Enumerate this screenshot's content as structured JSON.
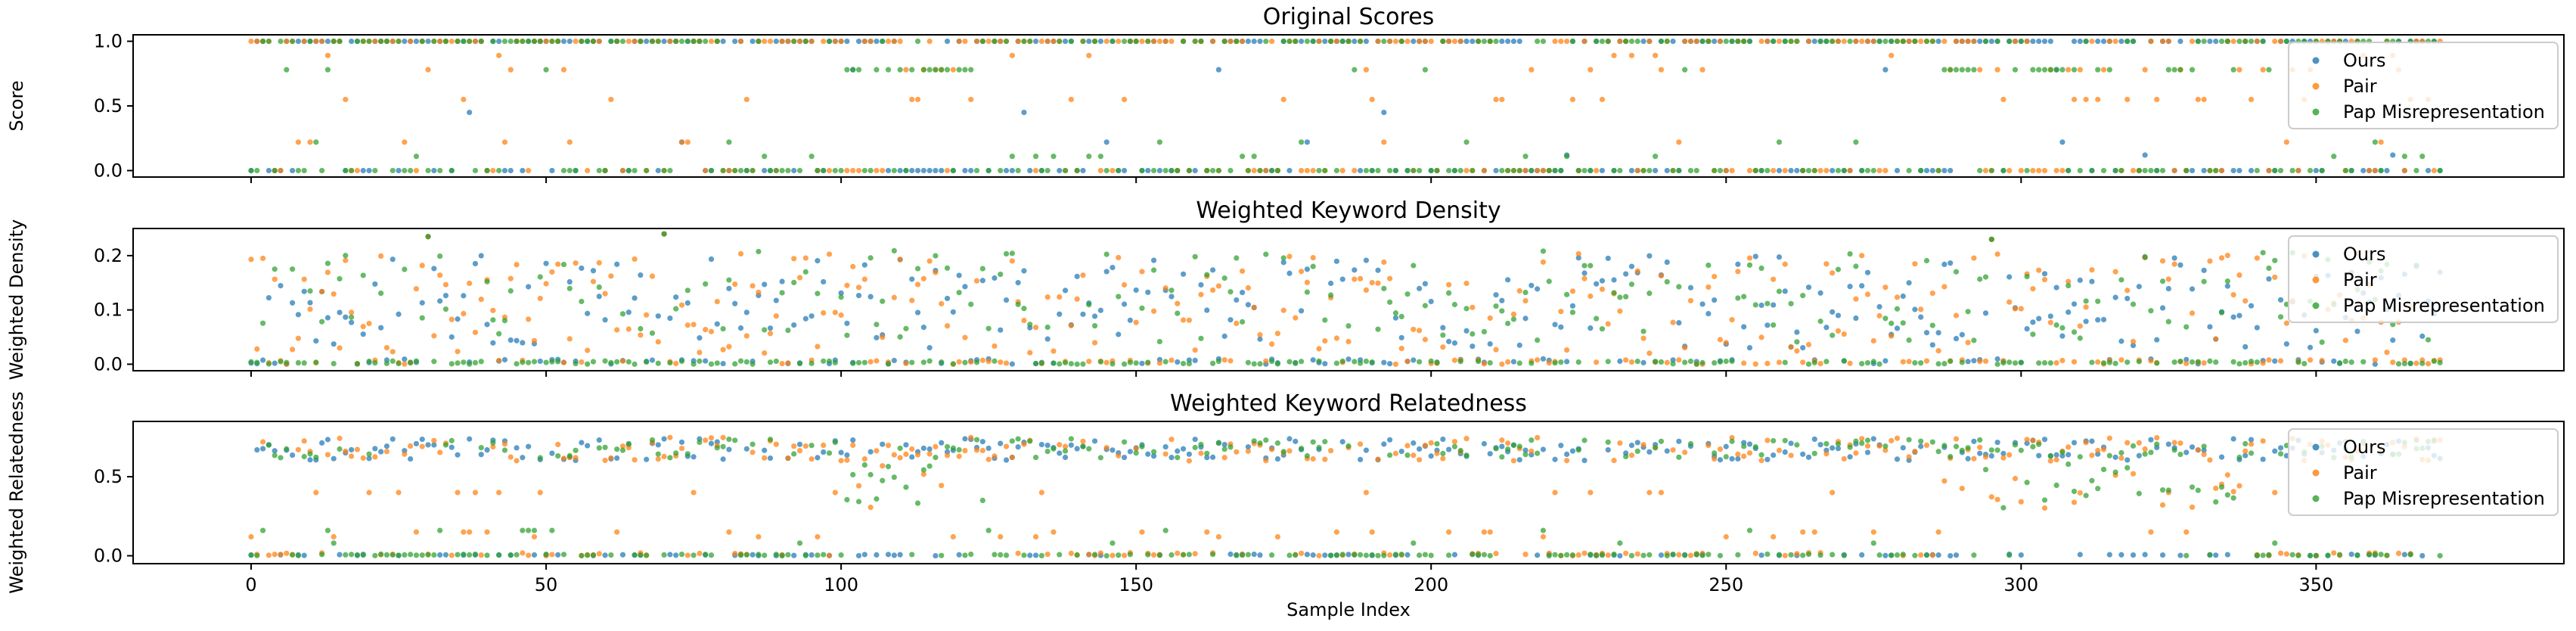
{
  "chart_data": [
    {
      "type": "scatter",
      "title": "Original Scores",
      "ylabel": "Score",
      "xlabel": "",
      "xlim": [
        -20,
        392
      ],
      "ylim": [
        -0.05,
        1.05
      ],
      "xticks": [
        0,
        50,
        100,
        150,
        200,
        250,
        300,
        350
      ],
      "yticks": [
        0.0,
        0.5,
        1.0
      ],
      "ytick_labels": [
        "0.0",
        "0.5",
        "1.0"
      ],
      "show_xtick_labels": false,
      "legend": "right",
      "pattern": "binary"
    },
    {
      "type": "scatter",
      "title": "Weighted Keyword Density",
      "ylabel": "Weighted Density",
      "xlabel": "",
      "xlim": [
        -20,
        392
      ],
      "ylim": [
        -0.012,
        0.25
      ],
      "xticks": [
        0,
        50,
        100,
        150,
        200,
        250,
        300,
        350
      ],
      "yticks": [
        0.0,
        0.1,
        0.2
      ],
      "ytick_labels": [
        "0.0",
        "0.1",
        "0.2"
      ],
      "show_xtick_labels": false,
      "legend": "right",
      "pattern": "density"
    },
    {
      "type": "scatter",
      "title": "Weighted Keyword Relatedness",
      "ylabel": "Weighted Relatedness",
      "xlabel": "Sample Index",
      "xlim": [
        -20,
        392
      ],
      "ylim": [
        -0.05,
        0.85
      ],
      "xticks": [
        0,
        50,
        100,
        150,
        200,
        250,
        300,
        350
      ],
      "xtick_labels": [
        "0",
        "50",
        "100",
        "150",
        "200",
        "250",
        "300",
        "350"
      ],
      "yticks": [
        0.0,
        0.5
      ],
      "ytick_labels": [
        "0.0",
        "0.5"
      ],
      "show_xtick_labels": true,
      "legend": "right",
      "pattern": "relatedness"
    }
  ],
  "n_samples": 372,
  "series": [
    {
      "name": "Ours",
      "color": "#1f77b4"
    },
    {
      "name": "Pair",
      "color": "#ff7f0e"
    },
    {
      "name": "Pap Misrepresentation",
      "color": "#2ca02c"
    }
  ]
}
